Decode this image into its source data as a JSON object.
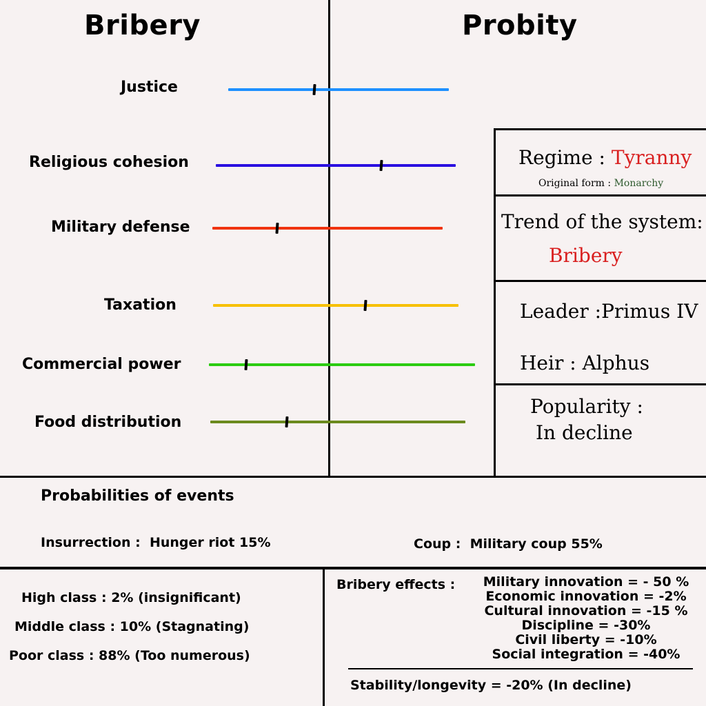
{
  "header": {
    "left_title": "Bribery",
    "right_title": "Probity"
  },
  "meters": [
    {
      "label": "Justice",
      "color": "#1e90ff",
      "position": 0.39
    },
    {
      "label": "Religious cohesion",
      "color": "#2a0fe0",
      "position": 0.69
    },
    {
      "label": "Military defense",
      "color": "#f0330e",
      "position": 0.28
    },
    {
      "label": "Taxation",
      "color": "#f7c000",
      "position": 0.62
    },
    {
      "label": "Commercial power",
      "color": "#2ccc12",
      "position": 0.14
    },
    {
      "label": "Food distribution",
      "color": "#6b8a1e",
      "position": 0.3
    }
  ],
  "panel": {
    "regime_label": "Regime : ",
    "regime_value": "Tyranny",
    "original_label": "Original form : ",
    "original_value": "Monarchy",
    "trend_label": "Trend of the system:",
    "trend_value": "Bribery",
    "leader": "Leader :Primus IV",
    "heir": "Heir : Alphus",
    "popularity_label": "Popularity :",
    "popularity_value": "In decline",
    "colors": {
      "red": "#d92020",
      "green": "#2e5a2e"
    }
  },
  "events": {
    "title": "Probabilities of events",
    "insurrection_label": "Insurrection :",
    "insurrection_value": "Hunger riot 15%",
    "coup_label": "Coup :",
    "coup_value": "Military coup 55%"
  },
  "classes": {
    "high": "High class : 2% (insignificant)",
    "middle": "Middle class : 10% (Stagnating)",
    "poor": "Poor class : 88% (Too numerous)"
  },
  "effects": {
    "label": "Bribery effects :",
    "items": [
      "Military innovation = - 50 %",
      "Economic innovation = -2%",
      "Cultural innovation = -15 %",
      "Discipline = -30%",
      "Civil liberty = -10%",
      "Social integration = -40%"
    ],
    "stability": "Stability/longevity = -20% (In decline)"
  }
}
